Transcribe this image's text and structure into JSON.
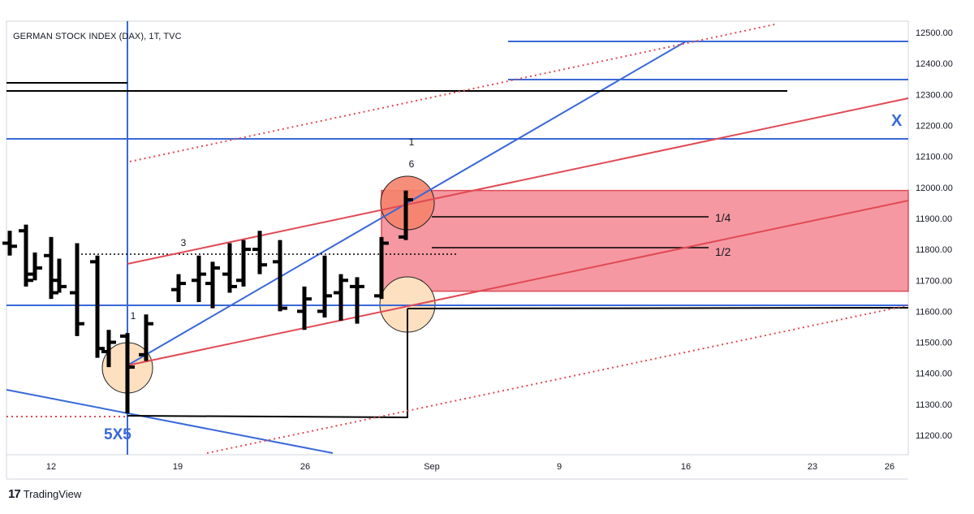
{
  "title": "GERMAN STOCK INDEX (DAX), 1T, TVC",
  "brand": "TradingView",
  "chart_data": {
    "type": "ohlc",
    "y_axis": {
      "ticks": [
        11200,
        11300,
        11400,
        11500,
        11600,
        11700,
        11800,
        11900,
        12000,
        12100,
        12200,
        12300,
        12400,
        12500
      ],
      "tick_labels": [
        "11200.00",
        "11300.00",
        "11400.00",
        "11500.00",
        "11600.00",
        "11700.00",
        "11800.00",
        "11900.00",
        "12000.00",
        "12100.00",
        "12200.00",
        "12300.00",
        "12400.00",
        "12500.00"
      ],
      "range": [
        11140,
        12540
      ]
    },
    "x_axis": {
      "tick_labels": [
        "12",
        "19",
        "26",
        "Sep",
        "9",
        "16",
        "23",
        "26"
      ]
    },
    "bars": [
      {
        "o": 11820,
        "h": 11860,
        "l": 11780,
        "c": 11810
      },
      {
        "o": 11860,
        "h": 11880,
        "l": 11680,
        "c": 11700
      },
      {
        "o": 11720,
        "h": 11790,
        "l": 11700,
        "c": 11740
      },
      {
        "o": 11780,
        "h": 11840,
        "l": 11640,
        "c": 11660
      },
      {
        "o": 11700,
        "h": 11770,
        "l": 11660,
        "c": 11680
      },
      {
        "o": 11660,
        "h": 11820,
        "l": 11520,
        "c": 11560
      },
      {
        "o": 11760,
        "h": 11780,
        "l": 11450,
        "c": 11480
      },
      {
        "o": 11470,
        "h": 11540,
        "l": 11420,
        "c": 11500
      },
      {
        "o": 11520,
        "h": 11530,
        "l": 11270,
        "c": 11420
      },
      {
        "o": 11460,
        "h": 11590,
        "l": 11440,
        "c": 11560
      },
      {
        "o": 11670,
        "h": 11720,
        "l": 11630,
        "c": 11690
      },
      {
        "o": 11700,
        "h": 11780,
        "l": 11630,
        "c": 11720
      },
      {
        "o": 11690,
        "h": 11760,
        "l": 11610,
        "c": 11740
      },
      {
        "o": 11720,
        "h": 11820,
        "l": 11660,
        "c": 11680
      },
      {
        "o": 11700,
        "h": 11830,
        "l": 11680,
        "c": 11800
      },
      {
        "o": 11800,
        "h": 11860,
        "l": 11720,
        "c": 11750
      },
      {
        "o": 11760,
        "h": 11830,
        "l": 11600,
        "c": 11610
      },
      {
        "o": 11600,
        "h": 11680,
        "l": 11540,
        "c": 11640
      },
      {
        "o": 11600,
        "h": 11780,
        "l": 11580,
        "c": 11650
      },
      {
        "o": 11660,
        "h": 11720,
        "l": 11570,
        "c": 11700
      },
      {
        "o": 11680,
        "h": 11710,
        "l": 11560,
        "c": 11680
      },
      {
        "o": 11650,
        "h": 11840,
        "l": 11640,
        "c": 11820
      },
      {
        "o": 11840,
        "h": 11990,
        "l": 11830,
        "c": 11960
      }
    ],
    "annotations": [
      {
        "text": "1",
        "near": "bar 9 high"
      },
      {
        "text": "3",
        "near": "bar 11 high"
      },
      {
        "text": "1",
        "near": "bar 23 high, upper"
      },
      {
        "text": "6",
        "near": "bar 23 high"
      },
      {
        "text": "1/4",
        "near": "11900"
      },
      {
        "text": "1/2",
        "near": "11790"
      },
      {
        "text": "X",
        "near": "12180"
      },
      {
        "text": "5X5",
        "near": "bar 9 low"
      }
    ],
    "levels": {
      "zone_top": 11990,
      "zone_bottom": 11665,
      "blue_upper": 12460,
      "blue_mid_upper": 12340,
      "blue_mid": 12150,
      "blue_low": 11615,
      "black_upper_1": 12335,
      "black_upper_2": 12305,
      "black_low_1": 11605,
      "dotted_black": 11778,
      "quarter": 11900,
      "half": 11795,
      "bottom_low": 11262
    }
  },
  "labels": {
    "n1_left": "1",
    "n3": "3",
    "n1_top": "1",
    "n6": "6",
    "quarter": "1/4",
    "half": "1/2",
    "x_mark": "X",
    "five_x_five": "5X5"
  },
  "colors": {
    "blue": "#3a68d8",
    "red": "#e04a55",
    "zone": "#f27b86",
    "circle_fill": "#fde0c0",
    "circle_fill_top": "#f5836c",
    "bar": "#000000"
  }
}
